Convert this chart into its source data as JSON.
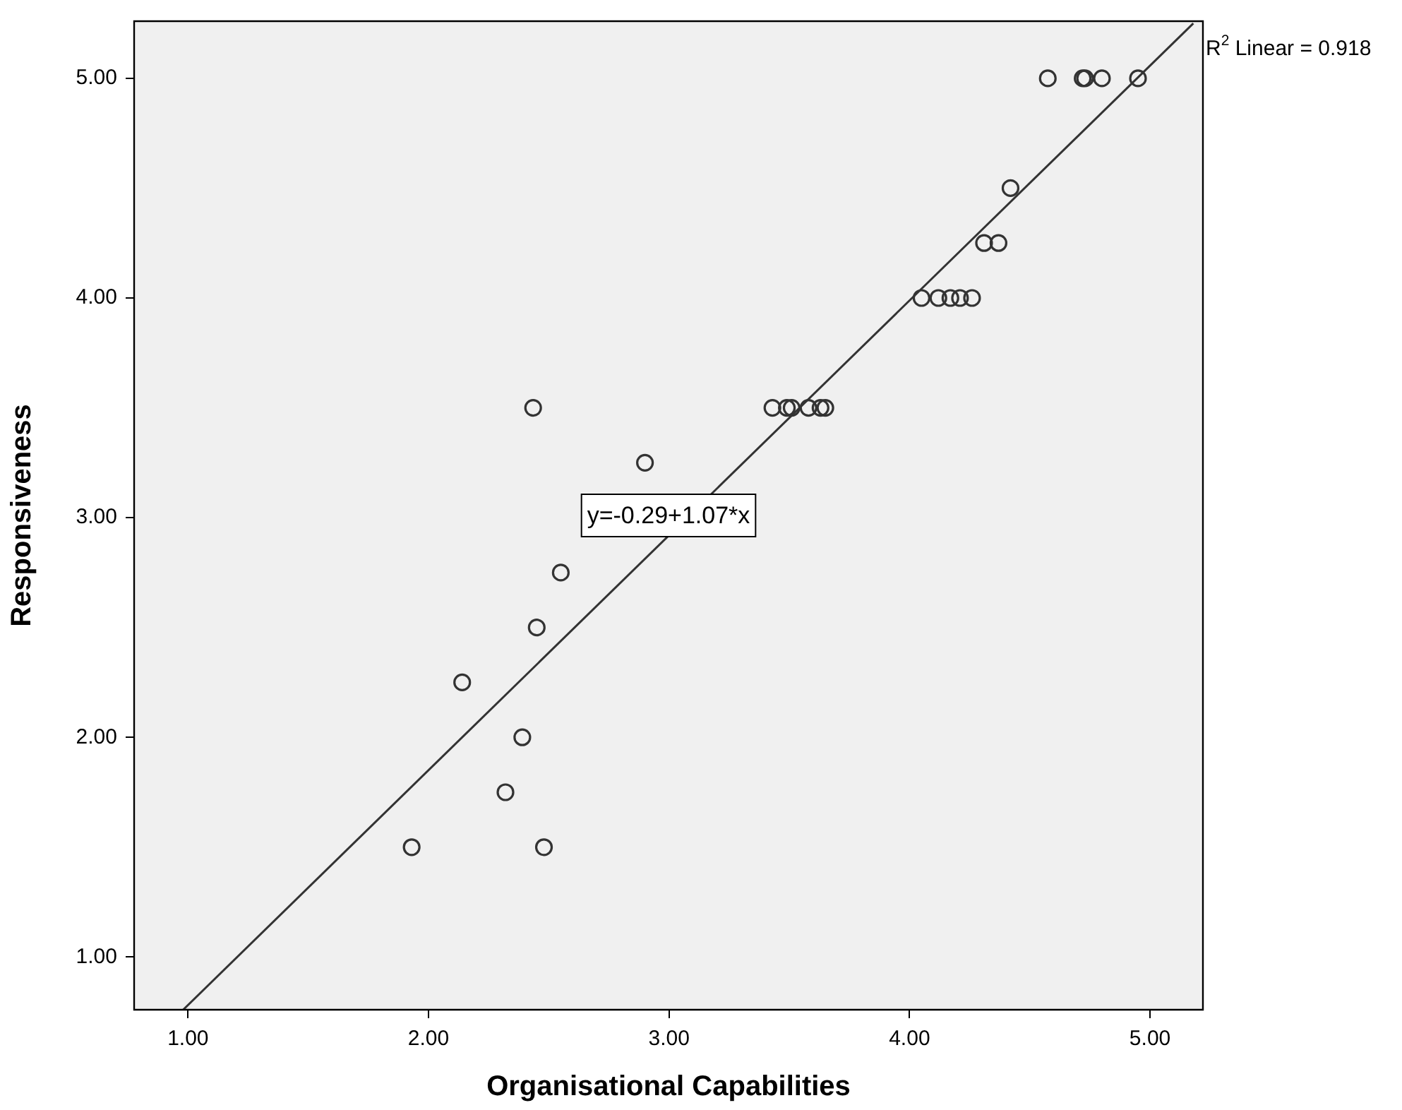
{
  "chart_data": {
    "type": "scatter",
    "xlabel": "Organisational Capabilities",
    "ylabel": "Responsiveness",
    "xlim": [
      0.776,
      5.22
    ],
    "ylim": [
      0.76,
      5.26
    ],
    "xticks": [
      {
        "value": 1,
        "label": "1.00"
      },
      {
        "value": 2,
        "label": "2.00"
      },
      {
        "value": 3,
        "label": "3.00"
      },
      {
        "value": 4,
        "label": "4.00"
      },
      {
        "value": 5,
        "label": "5.00"
      }
    ],
    "yticks": [
      {
        "value": 1,
        "label": "1.00"
      },
      {
        "value": 2,
        "label": "2.00"
      },
      {
        "value": 3,
        "label": "3.00"
      },
      {
        "value": 4,
        "label": "4.00"
      },
      {
        "value": 5,
        "label": "5.00"
      }
    ],
    "grid": false,
    "legend": false,
    "series": [
      {
        "marker": "circle",
        "color": "#333333",
        "x": [
          1.93,
          2.48,
          2.32,
          2.39,
          2.14,
          2.45,
          2.55,
          2.9,
          2.435,
          3.43,
          3.49,
          3.51,
          3.58,
          3.63,
          3.65,
          4.05,
          4.12,
          4.17,
          4.21,
          4.26,
          4.31,
          4.37,
          4.42,
          4.575,
          4.72,
          4.73,
          4.8,
          4.95
        ],
        "values": [
          1.5,
          1.5,
          1.75,
          2.0,
          2.25,
          2.5,
          2.75,
          3.25,
          3.5,
          3.5,
          3.5,
          3.5,
          3.5,
          3.5,
          3.5,
          4.0,
          4.0,
          4.0,
          4.0,
          4.0,
          4.25,
          4.25,
          4.5,
          5.0,
          5.0,
          5.0,
          5.0,
          5.0
        ]
      },
      {
        "type": "line",
        "color": "#333333",
        "x": [
          0.98,
          5.18
        ],
        "values": [
          0.76,
          5.25
        ]
      }
    ],
    "annotations": [
      "y=-0.29+1.07*x",
      "R$^{2}$ Linear = 0.918"
    ]
  }
}
